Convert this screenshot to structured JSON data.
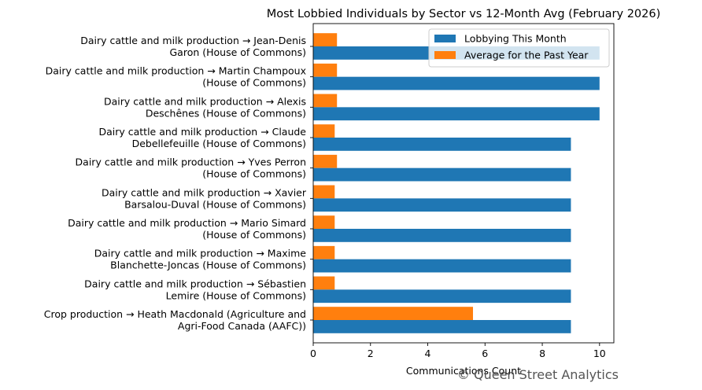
{
  "chart_data": {
    "type": "bar",
    "orientation": "horizontal",
    "title": "Most Lobbied Individuals by Sector vs 12-Month Avg (February 2026)",
    "xlabel": "Communications Count",
    "ylabel": "",
    "xlim": [
      0,
      10.5
    ],
    "x_ticks": [
      0,
      2,
      4,
      6,
      8,
      10
    ],
    "grid": false,
    "legend_position": "top-right",
    "categories": [
      [
        "Dairy cattle and milk production → Jean-Denis",
        "Garon (House of Commons)"
      ],
      [
        "Dairy cattle and milk production → Martin Champoux",
        "(House of Commons)"
      ],
      [
        "Dairy cattle and milk production → Alexis",
        "Deschênes (House of Commons)"
      ],
      [
        "Dairy cattle and milk production → Claude",
        "Debellefeuille (House of Commons)"
      ],
      [
        "Dairy cattle and milk production → Yves Perron",
        "(House of Commons)"
      ],
      [
        "Dairy cattle and milk production → Xavier",
        "Barsalou-Duval (House of Commons)"
      ],
      [
        "Dairy cattle and milk production → Mario Simard",
        "(House of Commons)"
      ],
      [
        "Dairy cattle and milk production → Maxime",
        "Blanchette-Joncas (House of Commons)"
      ],
      [
        "Dairy cattle and milk production → Sébastien",
        "Lemire (House of Commons)"
      ],
      [
        "Crop production → Heath Macdonald (Agriculture and",
        "Agri-Food Canada (AAFC))"
      ]
    ],
    "series": [
      {
        "name": "Lobbying This Month",
        "color": "#1f77b4",
        "values": [
          10,
          10,
          10,
          9,
          9,
          9,
          9,
          9,
          9,
          9
        ]
      },
      {
        "name": "Average for the Past Year",
        "color": "#ff7f0e",
        "values": [
          0.83,
          0.83,
          0.83,
          0.75,
          0.83,
          0.75,
          0.75,
          0.75,
          0.75,
          5.58
        ]
      }
    ]
  },
  "watermark": "© Queen Street Analytics"
}
